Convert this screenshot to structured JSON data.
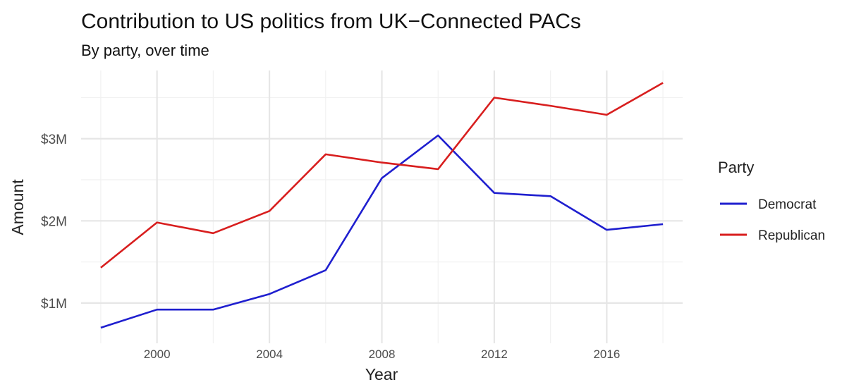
{
  "chart_data": {
    "type": "line",
    "title": "Contribution to US politics from UK−Connected PACs",
    "subtitle": "By party, over time",
    "xlabel": "Year",
    "ylabel": "Amount",
    "legend": {
      "title": "Party",
      "position": "right"
    },
    "grid": true,
    "xlim": [
      1997.3,
      2018.7
    ],
    "ylim": [
      0.51,
      3.83
    ],
    "x_ticks": [
      2000,
      2004,
      2008,
      2012,
      2016
    ],
    "x_tick_labels": [
      "2000",
      "2004",
      "2008",
      "2012",
      "2016"
    ],
    "y_ticks": [
      1,
      2,
      3
    ],
    "y_tick_labels": [
      "$1M",
      "$2M",
      "$3M"
    ],
    "x": [
      1998,
      2000,
      2002,
      2004,
      2006,
      2008,
      2010,
      2012,
      2014,
      2016,
      2018
    ],
    "series": [
      {
        "name": "Democrat",
        "color": "#1f1fcf",
        "values": [
          0.7,
          0.92,
          0.92,
          1.11,
          1.4,
          2.52,
          3.04,
          2.34,
          2.3,
          1.89,
          1.96
        ]
      },
      {
        "name": "Republican",
        "color": "#d81e1e",
        "values": [
          1.43,
          1.98,
          1.85,
          2.12,
          2.81,
          2.71,
          2.63,
          3.5,
          3.4,
          3.29,
          3.68
        ]
      }
    ]
  }
}
